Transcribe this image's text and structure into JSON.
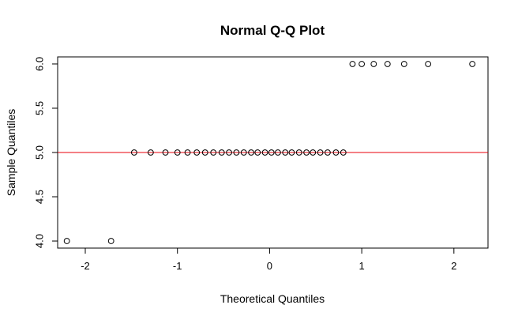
{
  "chart_data": {
    "type": "scatter",
    "title": "Normal Q-Q Plot",
    "xlabel": "Theoretical Quantiles",
    "ylabel": "Sample Quantiles",
    "xlim": [
      -2.3,
      2.37
    ],
    "ylim": [
      3.92,
      6.08
    ],
    "x_ticks": [
      -2,
      -1,
      0,
      1,
      2
    ],
    "x_tick_labels": [
      "-2",
      "-1",
      "0",
      "1",
      "2"
    ],
    "y_ticks": [
      4.0,
      4.5,
      5.0,
      5.5,
      6.0
    ],
    "y_tick_labels": [
      "4.0",
      "4.5",
      "5.0",
      "5.5",
      "6.0"
    ],
    "grid": false,
    "points": {
      "x": [
        -2.2,
        -1.72,
        -1.47,
        -1.29,
        -1.13,
        -1.0,
        -0.89,
        -0.79,
        -0.7,
        -0.61,
        -0.52,
        -0.44,
        -0.36,
        -0.28,
        -0.2,
        -0.13,
        -0.05,
        0.02,
        0.09,
        0.17,
        0.24,
        0.32,
        0.4,
        0.47,
        0.55,
        0.63,
        0.72,
        0.8,
        0.9,
        1.0,
        1.13,
        1.28,
        1.46,
        1.72,
        2.2
      ],
      "y": [
        4.0,
        4.0,
        5.0,
        5.0,
        5.0,
        5.0,
        5.0,
        5.0,
        5.0,
        5.0,
        5.0,
        5.0,
        5.0,
        5.0,
        5.0,
        5.0,
        5.0,
        5.0,
        5.0,
        5.0,
        5.0,
        5.0,
        5.0,
        5.0,
        5.0,
        5.0,
        5.0,
        5.0,
        6.0,
        6.0,
        6.0,
        6.0,
        6.0,
        6.0,
        6.0
      ]
    },
    "reference_line": {
      "intercept": 5.0,
      "slope": 0.0,
      "color": "#e8000b"
    },
    "point_color": "#000000"
  }
}
